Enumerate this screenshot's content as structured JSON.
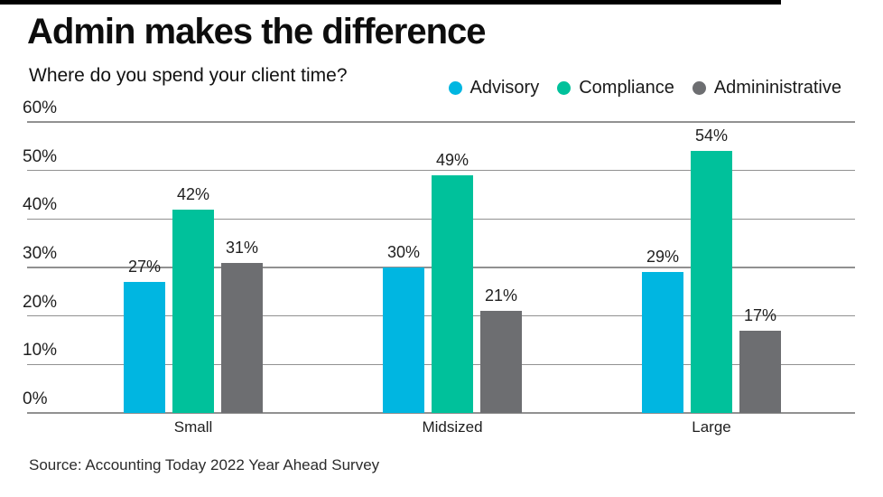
{
  "header": {
    "title": "Admin makes the difference",
    "subtitle": "Where do you spend your client time?"
  },
  "source": "Source: Accounting Today 2022 Year Ahead Survey",
  "colors": {
    "advisory": "#00b6e1",
    "compliance": "#00c19b",
    "administrative": "#6d6e71",
    "gridline": "#919191",
    "top_bar": "#000000"
  },
  "chart_data": {
    "type": "bar",
    "title": "Admin makes the difference",
    "subtitle": "Where do you spend your client time?",
    "categories": [
      "Small",
      "Midsized",
      "Large"
    ],
    "series": [
      {
        "name": "Advisory",
        "color": "#00b6e1",
        "values": [
          27,
          30,
          29
        ]
      },
      {
        "name": "Compliance",
        "color": "#00c19b",
        "values": [
          42,
          49,
          54
        ]
      },
      {
        "name": "Admininistrative",
        "color": "#6d6e71",
        "values": [
          31,
          21,
          17
        ]
      }
    ],
    "value_label_format": "{v}%",
    "yticks": [
      "0%",
      "10%",
      "20%",
      "30%",
      "40%",
      "50%",
      "60%"
    ],
    "ylim": [
      0,
      60
    ],
    "grid": true,
    "legend_position": "top-right",
    "value_labels": true,
    "source": "Source: Accounting Today 2022 Year Ahead Survey"
  }
}
